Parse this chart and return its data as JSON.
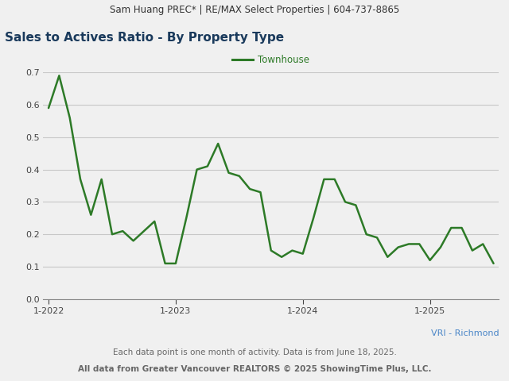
{
  "header_text": "Sam Huang PREC* | RE/MAX Select Properties | 604-737-8865",
  "title": "Sales to Actives Ratio - By Property Type",
  "legend_label": "Townhouse",
  "line_color": "#2d7a27",
  "ylim": [
    0.0,
    0.7
  ],
  "yticks": [
    0.0,
    0.1,
    0.2,
    0.3,
    0.4,
    0.5,
    0.6,
    0.7
  ],
  "footer_line1": "VRI - Richmond",
  "footer_line2": "Each data point is one month of activity. Data is from June 18, 2025.",
  "footer_line3": "All data from Greater Vancouver REALTORS © 2025 ShowingTime Plus, LLC.",
  "x_tick_labels": [
    "1-2022",
    "1-2023",
    "1-2024",
    "1-2025"
  ],
  "x_tick_positions": [
    0,
    12,
    24,
    36
  ],
  "values": [
    0.59,
    0.69,
    0.56,
    0.37,
    0.26,
    0.37,
    0.2,
    0.21,
    0.18,
    0.21,
    0.24,
    0.11,
    0.11,
    0.25,
    0.4,
    0.41,
    0.48,
    0.39,
    0.38,
    0.34,
    0.33,
    0.15,
    0.13,
    0.15,
    0.14,
    0.25,
    0.37,
    0.37,
    0.3,
    0.29,
    0.2,
    0.19,
    0.13,
    0.16,
    0.17,
    0.17,
    0.12,
    0.16,
    0.22,
    0.22,
    0.15,
    0.17,
    0.11
  ],
  "n_months": 43,
  "background_color": "#f0f0f0",
  "plot_bg_color": "#f0f0f0",
  "header_bg_color": "#e0e0e0",
  "grid_color": "#c8c8c8",
  "title_color": "#1a3a5c",
  "header_color": "#333333",
  "footer_vri_color": "#4a86c8",
  "footer_text_color": "#666666",
  "spine_color": "#888888"
}
